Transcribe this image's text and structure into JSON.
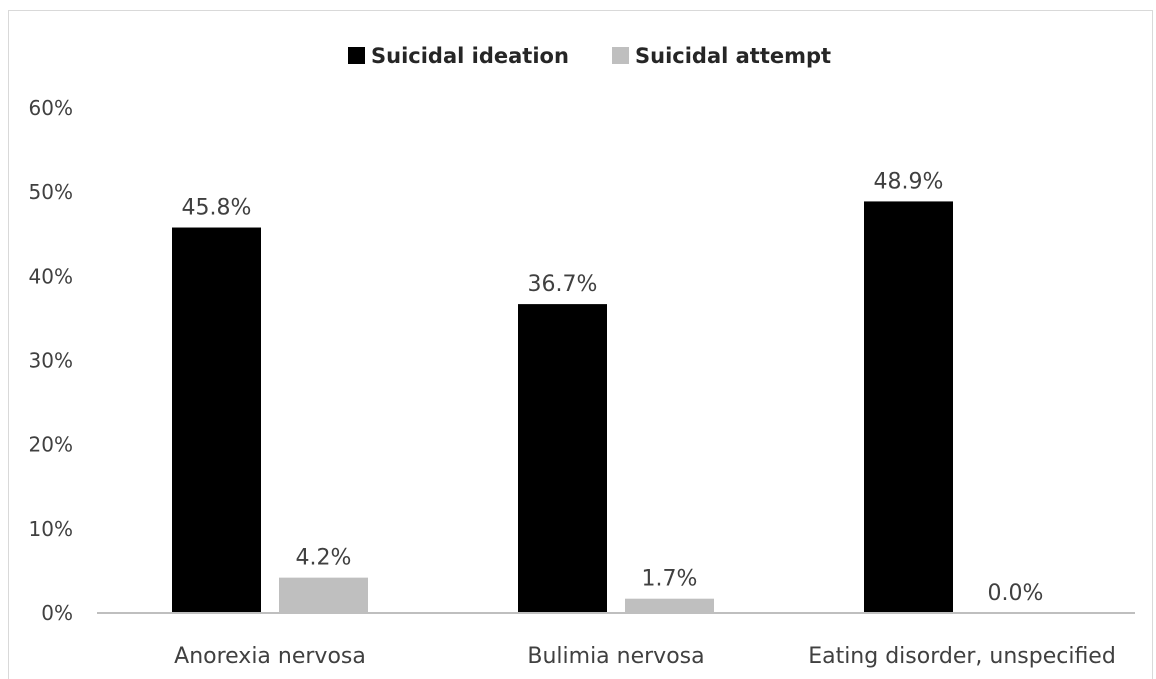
{
  "chart_data": {
    "type": "bar",
    "title": "",
    "xlabel": "",
    "ylabel": "",
    "categories": [
      "Anorexia nervosa",
      "Bulimia nervosa",
      "Eating disorder, unspecified"
    ],
    "series": [
      {
        "name": "Suicidal ideation",
        "color": "#000000",
        "values": [
          45.8,
          36.7,
          48.9
        ],
        "labels": [
          "45.8%",
          "36.7%",
          "48.9%"
        ]
      },
      {
        "name": "Suicidal attempt",
        "color": "#bfbfbf",
        "values": [
          4.2,
          1.7,
          0.0
        ],
        "labels": [
          "4.2%",
          "1.7%",
          "0.0%"
        ]
      }
    ],
    "ylim": [
      0,
      60
    ],
    "yticks": [
      0,
      10,
      20,
      30,
      40,
      50,
      60
    ],
    "ytick_labels": [
      "0%",
      "10%",
      "20%",
      "30%",
      "40%",
      "50%",
      "60%"
    ],
    "grid": false,
    "legend_position": "top-center"
  }
}
